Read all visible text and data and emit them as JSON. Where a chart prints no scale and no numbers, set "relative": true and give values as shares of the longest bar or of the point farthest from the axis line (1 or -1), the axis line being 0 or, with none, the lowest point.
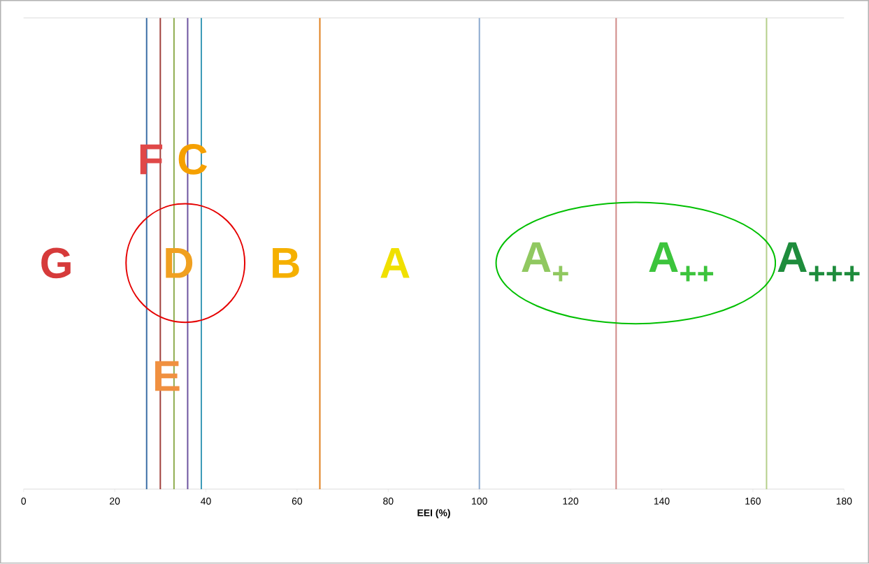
{
  "chart_data": {
    "type": "line",
    "relative": true,
    "xlabel": "EEI (%)",
    "xlim": [
      0,
      180
    ],
    "xticks": [
      0,
      20,
      40,
      60,
      80,
      100,
      120,
      140,
      160,
      180
    ],
    "series": [
      {
        "x": [
          27,
          27
        ],
        "values": [
          0,
          1
        ],
        "color": "#3b6ea5"
      },
      {
        "x": [
          30,
          30
        ],
        "values": [
          0,
          1
        ],
        "color": "#a0403c"
      },
      {
        "x": [
          33,
          33
        ],
        "values": [
          0,
          1
        ],
        "color": "#8fad4f"
      },
      {
        "x": [
          36,
          36
        ],
        "values": [
          0,
          1
        ],
        "color": "#6e55a0"
      },
      {
        "x": [
          39,
          39
        ],
        "values": [
          0,
          1
        ],
        "color": "#3d9ab8"
      },
      {
        "x": [
          65,
          65
        ],
        "values": [
          0,
          1
        ],
        "color": "#e0801f"
      },
      {
        "x": [
          100,
          100
        ],
        "values": [
          0,
          1
        ],
        "color": "#8aa8cf"
      },
      {
        "x": [
          130,
          130
        ],
        "values": [
          0,
          1
        ],
        "color": "#d08a88"
      },
      {
        "x": [
          163,
          163
        ],
        "values": [
          0,
          1
        ],
        "color": "#b5cf8a"
      }
    ],
    "annotations": [
      "G",
      "F",
      "E",
      "D",
      "C",
      "B",
      "A",
      "A$_{+}$",
      "A$_{++}$",
      "A$_{+++}$"
    ]
  }
}
